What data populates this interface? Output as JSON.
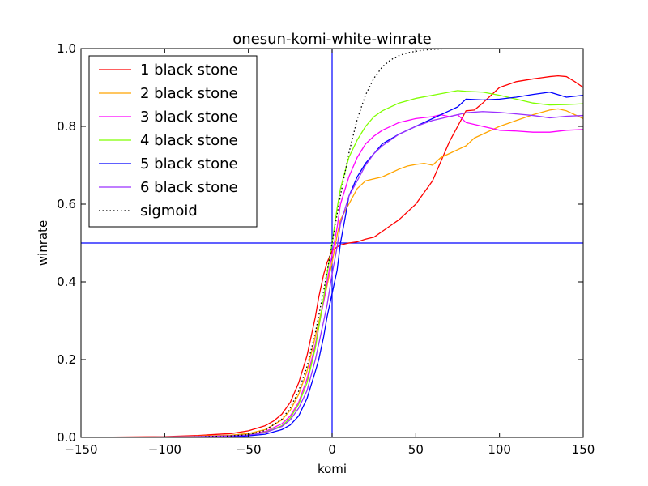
{
  "chart_data": {
    "type": "line",
    "title": "onesun-komi-white-winrate",
    "xlabel": "komi",
    "ylabel": "winrate",
    "xlim": [
      -150,
      150
    ],
    "ylim": [
      0,
      1
    ],
    "xticks": [
      -150,
      -100,
      -50,
      0,
      50,
      100,
      150
    ],
    "yticks": [
      0.0,
      0.2,
      0.4,
      0.6,
      0.8,
      1.0
    ],
    "xtick_labels": [
      "−150",
      "−100",
      "−50",
      "0",
      "50",
      "100",
      "150"
    ],
    "ytick_labels": [
      "0.0",
      "0.2",
      "0.4",
      "0.6",
      "0.8",
      "1.0"
    ],
    "grid": false,
    "legend_position": "top-left",
    "reference_lines": [
      {
        "orientation": "vertical",
        "value": 0,
        "color": "#0000ff"
      },
      {
        "orientation": "horizontal",
        "value": 0.5,
        "color": "#0000ff"
      }
    ],
    "series": [
      {
        "name": "1 black stone",
        "color": "#ff0000",
        "style": "solid",
        "x": [
          -150,
          -100,
          -80,
          -60,
          -50,
          -40,
          -35,
          -30,
          -25,
          -20,
          -15,
          -10,
          -8,
          -5,
          -3,
          -1,
          0,
          3,
          5,
          10,
          15,
          20,
          25,
          30,
          35,
          40,
          45,
          50,
          55,
          60,
          65,
          70,
          75,
          80,
          85,
          90,
          95,
          100,
          110,
          120,
          125,
          130,
          135,
          140,
          145,
          150
        ],
        "y": [
          0.0,
          0.002,
          0.005,
          0.01,
          0.017,
          0.03,
          0.042,
          0.06,
          0.09,
          0.14,
          0.21,
          0.31,
          0.36,
          0.42,
          0.45,
          0.47,
          0.48,
          0.49,
          0.495,
          0.5,
          0.503,
          0.51,
          0.515,
          0.53,
          0.545,
          0.56,
          0.58,
          0.6,
          0.63,
          0.66,
          0.71,
          0.76,
          0.8,
          0.84,
          0.842,
          0.86,
          0.88,
          0.9,
          0.915,
          0.922,
          0.925,
          0.928,
          0.93,
          0.928,
          0.915,
          0.9
        ]
      },
      {
        "name": "2 black stone",
        "color": "#ffa500",
        "style": "solid",
        "x": [
          -150,
          -100,
          -80,
          -60,
          -50,
          -40,
          -30,
          -25,
          -20,
          -15,
          -10,
          -5,
          -3,
          0,
          3,
          5,
          10,
          15,
          20,
          25,
          30,
          35,
          40,
          45,
          50,
          55,
          60,
          65,
          70,
          75,
          80,
          85,
          90,
          100,
          110,
          120,
          130,
          135,
          140,
          145,
          150
        ],
        "y": [
          0.0,
          0.001,
          0.003,
          0.006,
          0.01,
          0.02,
          0.045,
          0.07,
          0.11,
          0.17,
          0.26,
          0.35,
          0.39,
          0.45,
          0.52,
          0.56,
          0.6,
          0.64,
          0.66,
          0.665,
          0.67,
          0.68,
          0.69,
          0.698,
          0.702,
          0.705,
          0.7,
          0.72,
          0.73,
          0.74,
          0.75,
          0.77,
          0.78,
          0.8,
          0.815,
          0.83,
          0.842,
          0.845,
          0.84,
          0.83,
          0.82
        ]
      },
      {
        "name": "3 black stone",
        "color": "#ff00ff",
        "style": "solid",
        "x": [
          -150,
          -100,
          -80,
          -60,
          -50,
          -40,
          -30,
          -25,
          -20,
          -15,
          -10,
          -5,
          -3,
          0,
          3,
          5,
          10,
          15,
          20,
          25,
          30,
          40,
          50,
          60,
          65,
          70,
          75,
          80,
          90,
          100,
          110,
          120,
          130,
          140,
          150
        ],
        "y": [
          0.0,
          0.001,
          0.002,
          0.004,
          0.007,
          0.015,
          0.035,
          0.055,
          0.09,
          0.15,
          0.24,
          0.35,
          0.4,
          0.47,
          0.54,
          0.6,
          0.67,
          0.72,
          0.755,
          0.775,
          0.79,
          0.81,
          0.82,
          0.825,
          0.83,
          0.825,
          0.83,
          0.81,
          0.8,
          0.79,
          0.788,
          0.785,
          0.785,
          0.79,
          0.792
        ]
      },
      {
        "name": "4 black stone",
        "color": "#7fff00",
        "style": "solid",
        "x": [
          -150,
          -100,
          -80,
          -60,
          -50,
          -40,
          -30,
          -25,
          -20,
          -15,
          -10,
          -5,
          -3,
          0,
          3,
          5,
          10,
          15,
          20,
          25,
          30,
          40,
          50,
          60,
          70,
          75,
          80,
          90,
          100,
          110,
          120,
          130,
          140,
          150
        ],
        "y": [
          0.0,
          0.001,
          0.002,
          0.004,
          0.007,
          0.013,
          0.03,
          0.05,
          0.085,
          0.14,
          0.23,
          0.36,
          0.42,
          0.5,
          0.59,
          0.64,
          0.72,
          0.765,
          0.8,
          0.825,
          0.84,
          0.86,
          0.872,
          0.88,
          0.888,
          0.892,
          0.89,
          0.888,
          0.88,
          0.87,
          0.86,
          0.855,
          0.856,
          0.858
        ]
      },
      {
        "name": "5 black stone",
        "color": "#0000ff",
        "style": "solid",
        "x": [
          -150,
          -100,
          -80,
          -60,
          -50,
          -40,
          -30,
          -25,
          -20,
          -15,
          -10,
          -8,
          -5,
          -3,
          0,
          3,
          5,
          8,
          10,
          15,
          20,
          25,
          30,
          40,
          50,
          60,
          70,
          75,
          80,
          90,
          100,
          110,
          120,
          130,
          140,
          150
        ],
        "y": [
          0.0,
          0.0,
          0.001,
          0.002,
          0.004,
          0.008,
          0.02,
          0.032,
          0.055,
          0.1,
          0.17,
          0.2,
          0.26,
          0.31,
          0.37,
          0.43,
          0.5,
          0.57,
          0.62,
          0.67,
          0.705,
          0.73,
          0.755,
          0.78,
          0.8,
          0.82,
          0.84,
          0.85,
          0.87,
          0.868,
          0.87,
          0.875,
          0.882,
          0.888,
          0.875,
          0.88
        ]
      },
      {
        "name": "6 black stone",
        "color": "#9b30ff",
        "style": "solid",
        "x": [
          -150,
          -100,
          -80,
          -60,
          -50,
          -40,
          -30,
          -25,
          -20,
          -15,
          -10,
          -5,
          -3,
          0,
          3,
          5,
          10,
          15,
          20,
          25,
          30,
          40,
          50,
          60,
          70,
          80,
          90,
          100,
          110,
          120,
          130,
          140,
          150
        ],
        "y": [
          0.0,
          0.001,
          0.002,
          0.004,
          0.006,
          0.012,
          0.028,
          0.045,
          0.075,
          0.12,
          0.2,
          0.3,
          0.34,
          0.42,
          0.49,
          0.55,
          0.62,
          0.66,
          0.7,
          0.73,
          0.75,
          0.78,
          0.8,
          0.815,
          0.825,
          0.835,
          0.838,
          0.836,
          0.832,
          0.828,
          0.822,
          0.826,
          0.828
        ]
      },
      {
        "name": "sigmoid",
        "color": "#000000",
        "style": "dotted",
        "x": [
          -150,
          -100,
          -80,
          -60,
          -50,
          -40,
          -30,
          -25,
          -20,
          -15,
          -10,
          -5,
          -3,
          0,
          3,
          5,
          10,
          15,
          20,
          25,
          30,
          35,
          40,
          45,
          50,
          55,
          60,
          65,
          70
        ],
        "y": [
          0.0,
          0.0,
          0.001,
          0.004,
          0.007,
          0.018,
          0.047,
          0.076,
          0.119,
          0.182,
          0.269,
          0.378,
          0.426,
          0.5,
          0.574,
          0.622,
          0.731,
          0.818,
          0.881,
          0.924,
          0.953,
          0.971,
          0.982,
          0.989,
          0.993,
          0.996,
          0.998,
          0.999,
          1.0
        ]
      }
    ]
  }
}
